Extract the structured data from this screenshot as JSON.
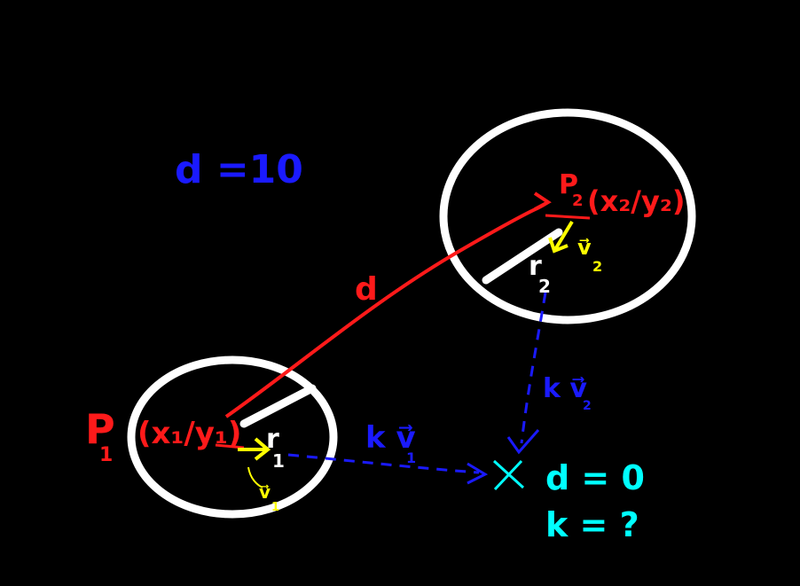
{
  "colors": {
    "background": "#000000",
    "circle": "#ffffff",
    "distance": "#ff1a1a",
    "velocity": "#ffff00",
    "projection": "#1a1aff",
    "result": "#00ffff"
  },
  "labels": {
    "d_value": "d =10",
    "d_edge": "d",
    "p1_letter": "P",
    "p1_sub": "1",
    "p1_coords": "(x₁/y₁)",
    "p2_letter": "P",
    "p2_sub": "2",
    "p2_coords": "(x₂/y₂)",
    "r1": "r",
    "r1_sub": "1",
    "r2": "r",
    "r2_sub": "2",
    "v1": "v⃗",
    "v1_sub": "1",
    "v2": "v⃗",
    "v2_sub": "2",
    "kv1": "k v⃗",
    "kv1_sub": "1",
    "kv2": "k v⃗",
    "kv2_sub": "2",
    "collision_mark": "X",
    "result_d": "d = 0",
    "result_k": "k = ?"
  }
}
